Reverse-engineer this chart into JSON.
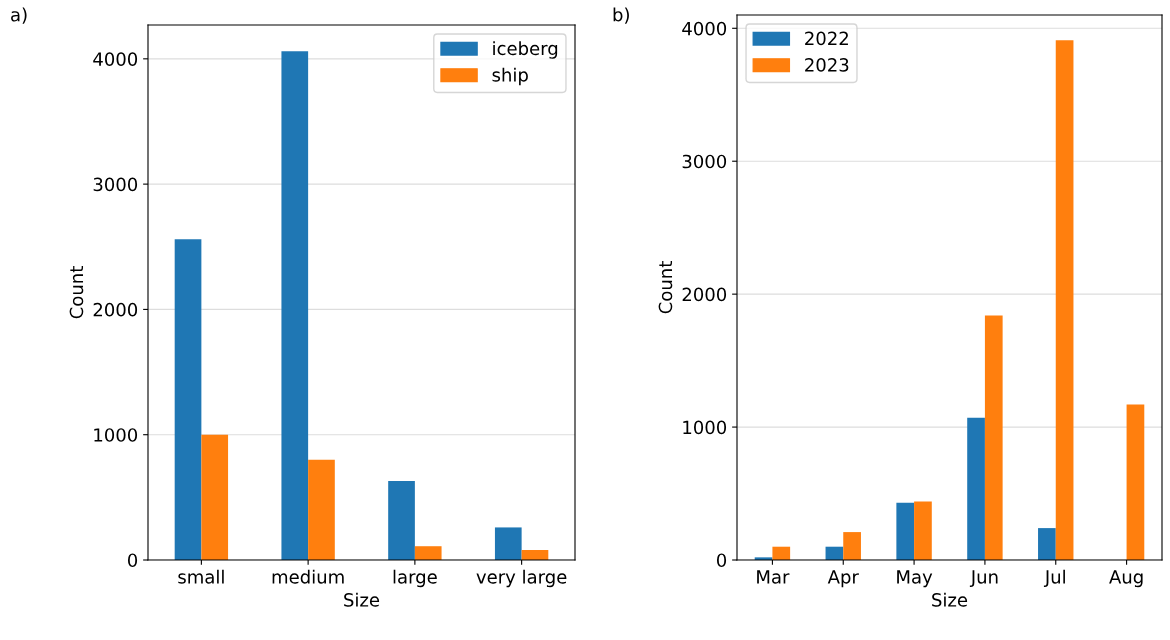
{
  "chart_data": [
    {
      "type": "bar",
      "xlabel": "Size",
      "ylabel": "Count",
      "annotations": [
        "a)"
      ],
      "categories": [
        "small",
        "medium",
        "large",
        "very large"
      ],
      "series": [
        {
          "name": "iceberg",
          "color": "#1f77b4",
          "values": [
            2560,
            4060,
            630,
            260
          ]
        },
        {
          "name": "ship",
          "color": "#ff7f0e",
          "values": [
            1000,
            800,
            110,
            80
          ]
        }
      ],
      "ylim": [
        0,
        4270
      ],
      "yticks": [
        0,
        1000,
        2000,
        3000,
        4000
      ],
      "grid": "y",
      "legend": "top right"
    },
    {
      "type": "bar",
      "xlabel": "Size",
      "ylabel": "Count",
      "annotations": [
        "b)"
      ],
      "categories": [
        "Mar",
        "Apr",
        "May",
        "Jun",
        "Jul",
        "Aug"
      ],
      "series": [
        {
          "name": "2022",
          "color": "#1f77b4",
          "values": [
            20,
            100,
            430,
            1070,
            240,
            null
          ]
        },
        {
          "name": "2023",
          "color": "#ff7f0e",
          "values": [
            100,
            210,
            440,
            1840,
            3910,
            1170
          ]
        }
      ],
      "ylim": [
        0,
        4100
      ],
      "yticks": [
        0,
        1000,
        2000,
        3000,
        4000
      ],
      "grid": "y",
      "legend": "top left"
    }
  ]
}
